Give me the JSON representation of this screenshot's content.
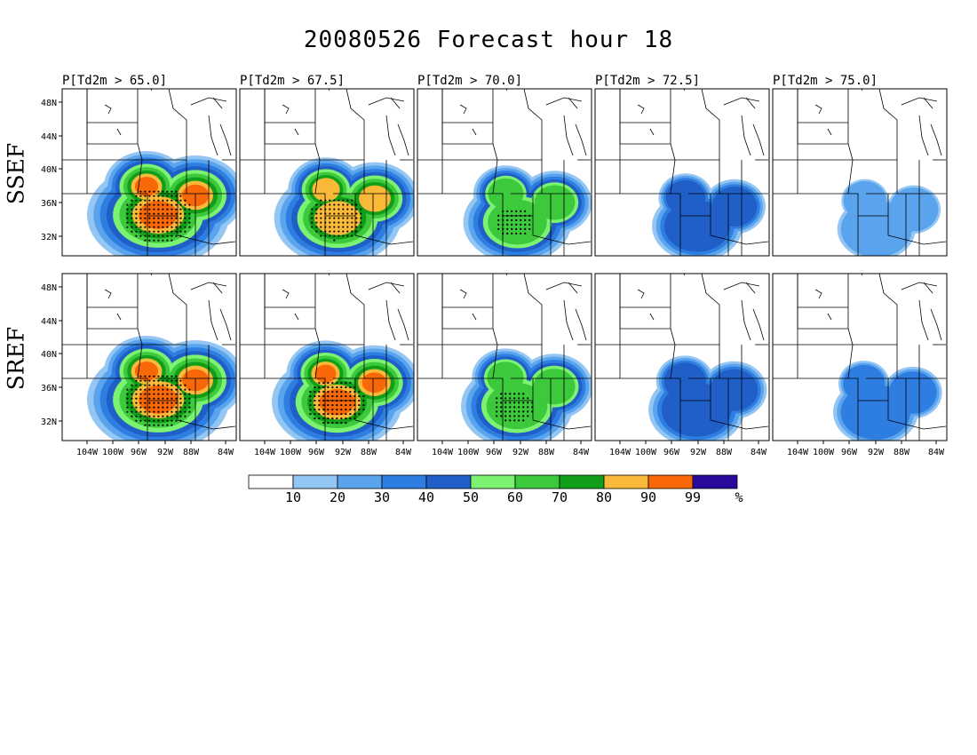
{
  "title": "20080526 Forecast hour 18",
  "panel_titles": [
    "P[Td2m > 65.0]",
    "P[Td2m > 67.5]",
    "P[Td2m > 70.0]",
    "P[Td2m > 72.5]",
    "P[Td2m > 75.0]"
  ],
  "rows": [
    {
      "label": "SSEF",
      "panel_intensity": [
        1.0,
        0.8,
        0.55,
        0.3,
        0.12
      ]
    },
    {
      "label": "SREF",
      "panel_intensity": [
        1.0,
        0.85,
        0.6,
        0.38,
        0.22
      ]
    }
  ],
  "lat_labels": [
    "48N",
    "44N",
    "40N",
    "36N",
    "32N"
  ],
  "lon_labels": [
    "104W",
    "100W",
    "96W",
    "92W",
    "88W",
    "84W"
  ],
  "colorbar": {
    "colors": [
      "#ffffff",
      "#94c6f4",
      "#5aa4ee",
      "#2e7ee2",
      "#1f5fc7",
      "#7cf272",
      "#3cc93c",
      "#119f19",
      "#fbb93a",
      "#f86708",
      "#2a0a9c"
    ],
    "tick_labels": [
      "10",
      "20",
      "30",
      "40",
      "50",
      "60",
      "70",
      "80",
      "90",
      "99"
    ],
    "unit": "%"
  }
}
